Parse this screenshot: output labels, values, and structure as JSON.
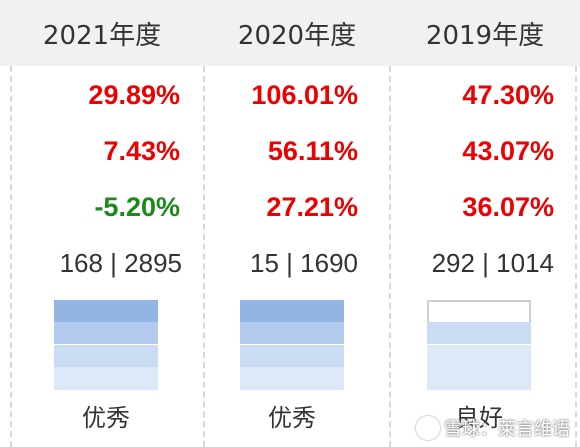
{
  "columns": [
    {
      "year": "2021年度",
      "metrics": [
        "29.89%",
        "7.43%",
        "-5.20%"
      ],
      "rank": "168 | 2895",
      "rating": "优秀",
      "rating_level": 4
    },
    {
      "year": "2020年度",
      "metrics": [
        "106.01%",
        "56.11%",
        "27.21%"
      ],
      "rank": "15 | 1690",
      "rating": "优秀",
      "rating_level": 4
    },
    {
      "year": "2019年度",
      "metrics": [
        "47.30%",
        "43.07%",
        "36.07%"
      ],
      "rank": "292 | 1014",
      "rating": "良好",
      "rating_level": 3
    }
  ],
  "colors": {
    "positive": "#ee0000",
    "negative": "#1b8a1b",
    "rating_levels": [
      "#dde8f8",
      "#cadcf4",
      "#b3cbee",
      "#93b5e4"
    ],
    "rating_empty": "#ffffff"
  },
  "watermark": "雪球：莱言维语"
}
